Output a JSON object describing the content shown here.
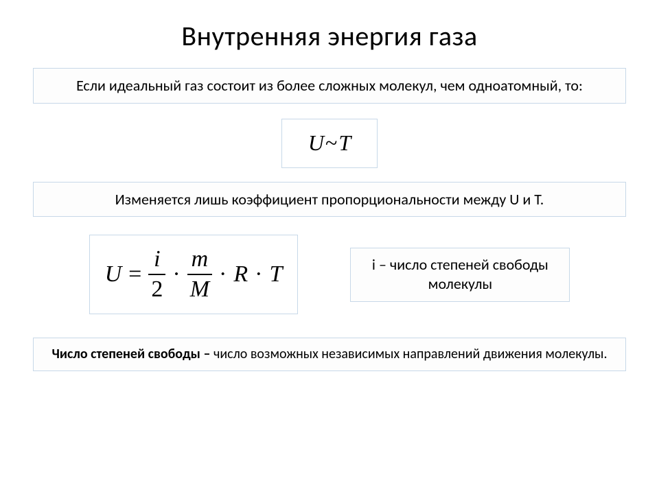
{
  "page": {
    "title": "Внутренняя энергия газа",
    "intro": "Если идеальный газ состоит из более сложных молекул, чем одноатомный, то:",
    "formula1": {
      "lhs": "U",
      "rel": "~",
      "rhs": "T"
    },
    "middle_text": "Изменяется лишь коэффициент пропорциональности между U и T.",
    "formula2": {
      "lhs": "U",
      "eq": "=",
      "frac1_num": "i",
      "frac1_den": "2",
      "dot": "·",
      "frac2_num": "m",
      "frac2_den": "M",
      "R": "R",
      "T": "T"
    },
    "side_note": "i – число степеней свободы молекулы",
    "definition_lead": "Число степеней свободы – ",
    "definition_rest": "число возможных независимых направлений движения молекулы.",
    "colors": {
      "box_border": "#c7d8e8",
      "background": "#ffffff",
      "text": "#000000"
    },
    "fonts": {
      "body": "Calibri",
      "math": "Times New Roman",
      "title_size_pt": 40,
      "body_size_pt": 22,
      "formula_size_pt": 34
    }
  }
}
